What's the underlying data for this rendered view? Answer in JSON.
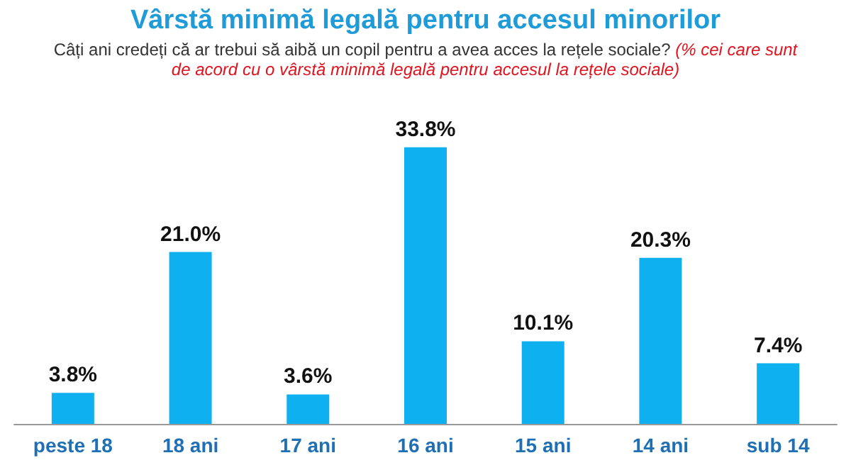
{
  "chart_data": {
    "type": "bar",
    "title": "Vârstă minimă legală pentru accesul minorilor",
    "subtitle": "Câți ani credeți că ar trebui să aibă un copil pentru a avea acces la rețele sociale?",
    "annotations": [
      "(% cei care sunt de acord cu o vârstă minimă legală pentru accesul la rețele sociale)"
    ],
    "categories": [
      "peste 18",
      "18 ani",
      "17 ani",
      "16 ani",
      "15 ani",
      "14 ani",
      "sub 14"
    ],
    "values": [
      3.8,
      21.0,
      3.6,
      33.8,
      10.1,
      20.3,
      7.4
    ],
    "value_labels": [
      "3.8%",
      "21.0%",
      "3.6%",
      "33.8%",
      "10.1%",
      "20.3%",
      "7.4%"
    ],
    "color": "#0fb0f0"
  }
}
